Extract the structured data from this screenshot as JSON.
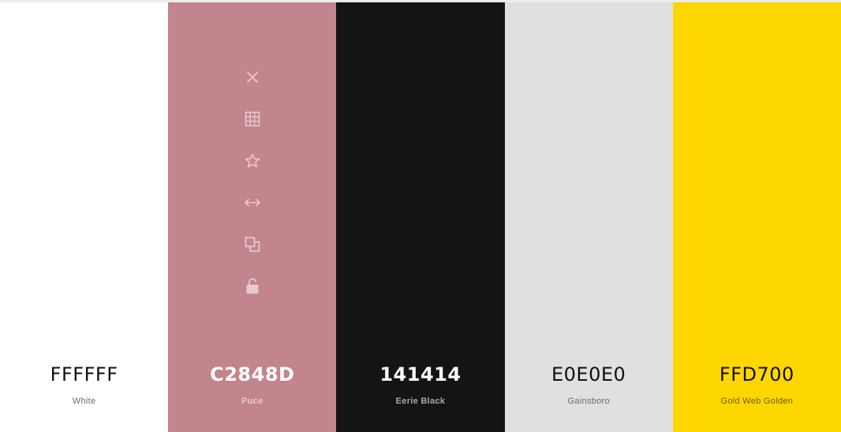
{
  "swatches": [
    {
      "hex": "FFFFFF",
      "name": "White",
      "bg": "#FFFFFF",
      "hex_color": "#111111",
      "name_color": "#6b6b6b"
    },
    {
      "hex": "C2848D",
      "name": "Puce",
      "bg": "#C2848D",
      "hex_color": "#FFFFFF",
      "name_color": "#E8C9CE"
    },
    {
      "hex": "141414",
      "name": "Eerie Black",
      "bg": "#141414",
      "hex_color": "#FFFFFF",
      "name_color": "#A9A9A9"
    },
    {
      "hex": "E0E0E0",
      "name": "Gainsboro",
      "bg": "#E0E0E0",
      "hex_color": "#111111",
      "name_color": "#6b6b6b"
    },
    {
      "hex": "FFD700",
      "name": "Gold Web Golden",
      "bg": "#FFD700",
      "hex_color": "#111111",
      "name_color": "#6b5a00"
    }
  ],
  "toolbar": {
    "icons": [
      "close-icon",
      "grid-icon",
      "star-icon",
      "swap-arrows-icon",
      "copy-icon",
      "unlock-icon"
    ],
    "icon_color": "#E8C9CE"
  }
}
